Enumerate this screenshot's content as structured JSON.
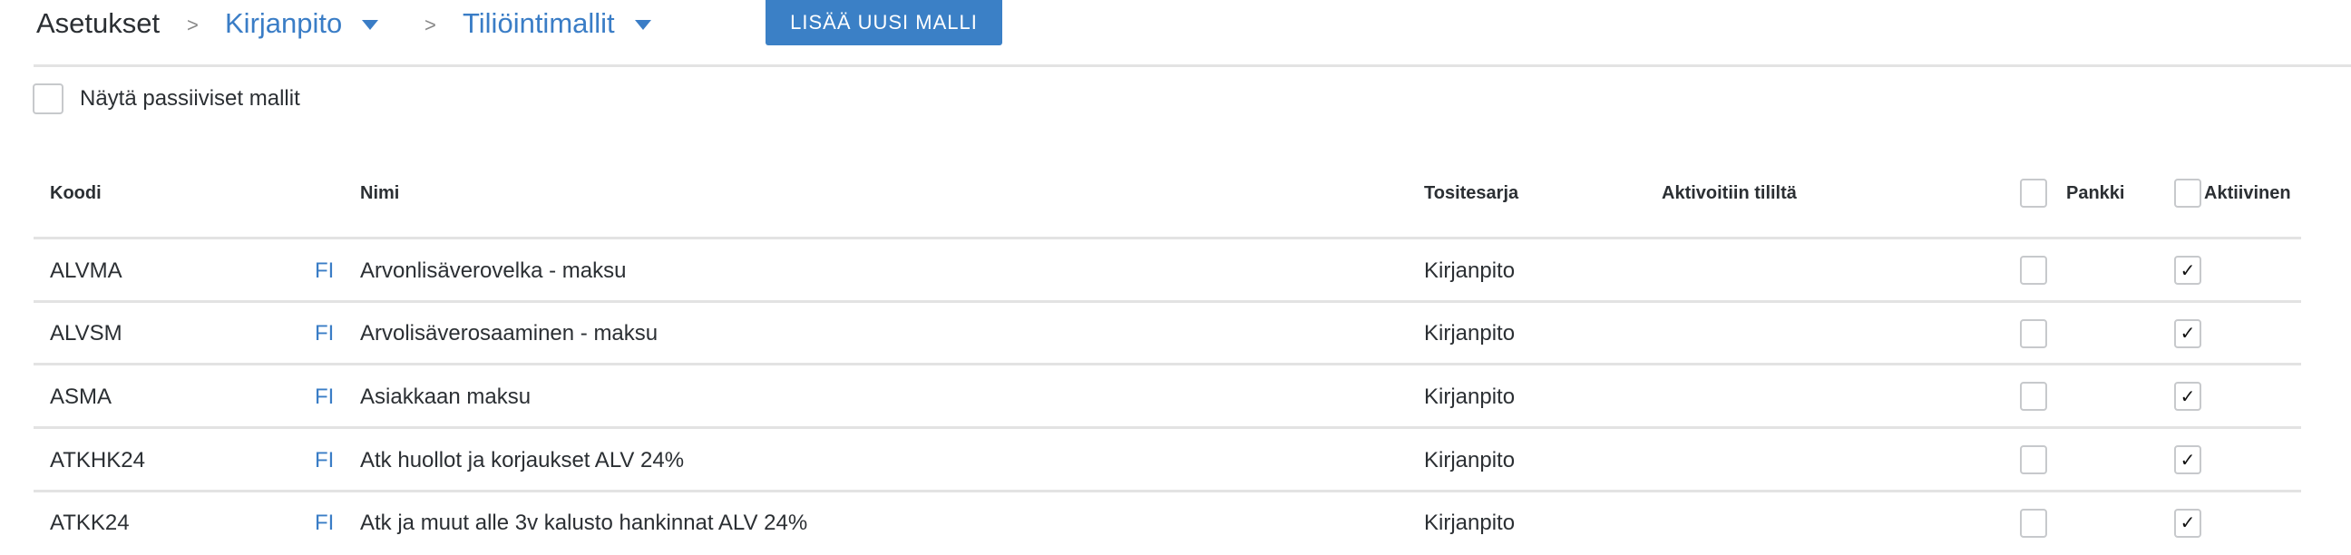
{
  "breadcrumb": {
    "root": "Asetukset",
    "level1": "Kirjanpito",
    "level2": "Tiliöintimallit",
    "separator": ">"
  },
  "add_button": "LISÄÄ UUSI MALLI",
  "show_passive": {
    "label": "Näytä passiiviset mallit",
    "checked": false
  },
  "table": {
    "headers": {
      "code": "Koodi",
      "name": "Nimi",
      "series": "Tositesarja",
      "activated_from": "Aktivoitiin tililtä",
      "bank": "Pankki",
      "active": "Aktiivinen"
    },
    "rows": [
      {
        "code": "ALVMA",
        "lang": "FI",
        "name": "Arvonlisäverovelka - maksu",
        "series": "Kirjanpito",
        "activated_from": "",
        "bank": false,
        "active": true
      },
      {
        "code": "ALVSM",
        "lang": "FI",
        "name": "Arvolisäverosaaminen - maksu",
        "series": "Kirjanpito",
        "activated_from": "",
        "bank": false,
        "active": true
      },
      {
        "code": "ASMA",
        "lang": "FI",
        "name": "Asiakkaan maksu",
        "series": "Kirjanpito",
        "activated_from": "",
        "bank": false,
        "active": true
      },
      {
        "code": "ATKHK24",
        "lang": "FI",
        "name": "Atk huollot ja korjaukset ALV 24%",
        "series": "Kirjanpito",
        "activated_from": "",
        "bank": false,
        "active": true
      },
      {
        "code": "ATKK24",
        "lang": "FI",
        "name": "Atk ja muut alle 3v kalusto hankinnat ALV 24%",
        "series": "Kirjanpito",
        "activated_from": "",
        "bank": false,
        "active": true
      }
    ]
  },
  "colors": {
    "accent": "#3b80c6",
    "link": "#3a7dc6",
    "divider": "#e3e3e3"
  }
}
